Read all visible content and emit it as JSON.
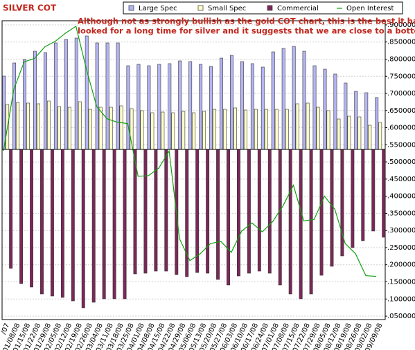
{
  "chart_data": {
    "type": "bar",
    "title": "SILVER COT",
    "annotation": [
      "Although not as strongly bullish as the gold COT chart, this is the best it has",
      "looked for a long time for silver and it suggests that we are close to a bottom."
    ],
    "categories": [
      "/07",
      "01/08/08",
      "01/15/08",
      "01/22/08",
      "01/29/08",
      "02/05/08",
      "02/12/08",
      "02/19/08",
      "02/26/08",
      "03/04/08",
      "03/11/08",
      "03/18/08",
      "03/25/08",
      "04/01/08",
      "04/08/08",
      "04/15/08",
      "04/22/08",
      "04/29/08",
      "05/06/08",
      "05/13/08",
      "05/20/08",
      "05/27/08",
      "06/03/08",
      "06/10/08",
      "06/17/08",
      "06/24/08",
      "07/01/08",
      "07/08/08",
      "07/15/08",
      "07/22/08",
      "07/29/08",
      "08/05/08",
      "08/12/08",
      "08/19/08",
      "08/26/08",
      "09/02/08",
      "09/09/08"
    ],
    "ylim": [
      -123,
      93
    ],
    "y2lim": [
      0.04,
      0.912
    ],
    "y2ticks": [
      {
        "value": 0.9,
        "label": ".900000"
      },
      {
        "value": 0.85,
        "label": ".850000"
      },
      {
        "value": 0.8,
        "label": ".800000"
      },
      {
        "value": 0.75,
        "label": ".750000"
      },
      {
        "value": 0.7,
        "label": ".700000"
      },
      {
        "value": 0.65,
        "label": ".650000"
      },
      {
        "value": 0.6,
        "label": ".600000"
      },
      {
        "value": 0.55,
        "label": ".550000"
      },
      {
        "value": 0.5,
        "label": ".500000"
      },
      {
        "value": 0.45,
        "label": ".450000"
      },
      {
        "value": 0.4,
        "label": ".400000"
      },
      {
        "value": 0.35,
        "label": ".350000"
      },
      {
        "value": 0.3,
        "label": ".300000"
      },
      {
        "value": 0.25,
        "label": ".250000"
      },
      {
        "value": 0.2,
        "label": ".200000"
      },
      {
        "value": 0.15,
        "label": ".150000"
      },
      {
        "value": 0.1,
        "label": ".100000"
      },
      {
        "value": 0.05,
        "label": ".050000"
      }
    ],
    "grid": true,
    "legend": "top",
    "series": [
      {
        "name": "Large Spec",
        "color": "#b4b4f4",
        "values": [
          53,
          62.5,
          65,
          71,
          70,
          77,
          79.5,
          80.5,
          82,
          77,
          77,
          77,
          60.5,
          61.5,
          60.5,
          61.5,
          62,
          64,
          63.5,
          61.5,
          60,
          66,
          68,
          63.5,
          62,
          59.5,
          70.5,
          73,
          74.5,
          71,
          60.5,
          58,
          54.5,
          48,
          42,
          41,
          37.5
        ]
      },
      {
        "name": "Small Spec",
        "color": "#ffffc8",
        "values": [
          32.5,
          34,
          33.5,
          33,
          35,
          31,
          30.5,
          34.5,
          29,
          30.5,
          30.5,
          31.5,
          29.5,
          28,
          26.5,
          27,
          26.5,
          27.5,
          26.5,
          27.5,
          29,
          29,
          30,
          28.5,
          29,
          29,
          29,
          29,
          33,
          33.5,
          30.5,
          28,
          22,
          24,
          23.5,
          17.5,
          19.5
        ]
      },
      {
        "name": "Commercial",
        "color": "#7b2858",
        "values": [
          -86,
          -97,
          -99.5,
          -104.5,
          -106,
          -107,
          -109.5,
          -114.5,
          -110.5,
          -108,
          -108,
          -108,
          -90,
          -89.5,
          -88,
          -88,
          -90.5,
          -92,
          -89,
          -89.5,
          -94,
          -98,
          -91.5,
          -89.5,
          -88,
          -89.5,
          -98,
          -104.5,
          -108,
          -104.5,
          -91,
          -84.5,
          -77,
          -71,
          -66,
          -59,
          -63.5
        ]
      },
      {
        "name": "Open Interest",
        "color": "#10a010",
        "axis": "y2",
        "type": "line",
        "values": [
          0.532,
          0.712,
          0.792,
          0.802,
          0.836,
          0.852,
          0.876,
          0.896,
          0.772,
          0.662,
          0.626,
          0.616,
          0.612,
          0.458,
          0.46,
          0.482,
          0.532,
          0.276,
          0.212,
          0.232,
          0.262,
          0.268,
          0.236,
          0.298,
          0.322,
          0.296,
          0.326,
          0.372,
          0.432,
          0.328,
          0.332,
          0.4,
          0.362,
          0.262,
          0.232,
          0.168,
          0.166
        ]
      }
    ]
  }
}
